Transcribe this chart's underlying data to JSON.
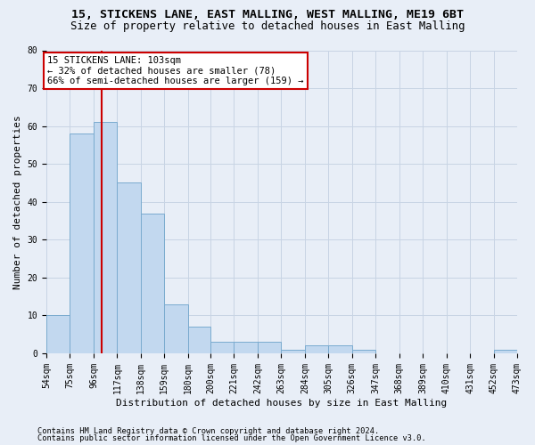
{
  "title1": "15, STICKENS LANE, EAST MALLING, WEST MALLING, ME19 6BT",
  "title2": "Size of property relative to detached houses in East Malling",
  "xlabel": "Distribution of detached houses by size in East Malling",
  "ylabel": "Number of detached properties",
  "footnote1": "Contains HM Land Registry data © Crown copyright and database right 2024.",
  "footnote2": "Contains public sector information licensed under the Open Government Licence v3.0.",
  "bin_edges": [
    54,
    75,
    96,
    117,
    138,
    159,
    180,
    200,
    221,
    242,
    263,
    284,
    305,
    326,
    347,
    368,
    389,
    410,
    431,
    452,
    473
  ],
  "counts": [
    10,
    58,
    61,
    45,
    37,
    13,
    7,
    3,
    3,
    3,
    1,
    2,
    2,
    1,
    0,
    0,
    0,
    0,
    0,
    1
  ],
  "bar_color": "#c2d8ef",
  "bar_edge_color": "#7aabcf",
  "vline_x": 103,
  "vline_color": "#cc0000",
  "ann_line1": "15 STICKENS LANE: 103sqm",
  "ann_line2": "← 32% of detached houses are smaller (78)",
  "ann_line3": "66% of semi-detached houses are larger (159) →",
  "ann_box_fc": "white",
  "ann_box_ec": "#cc0000",
  "ylim": [
    0,
    80
  ],
  "yticks": [
    0,
    10,
    20,
    30,
    40,
    50,
    60,
    70,
    80
  ],
  "grid_color": "#c8d4e4",
  "bg_color": "#e8eef7",
  "title1_fs": 9.5,
  "title2_fs": 8.8,
  "tick_fs": 7,
  "ylabel_fs": 8,
  "xlabel_fs": 8,
  "ann_fs": 7.5,
  "footnote_fs": 6.2
}
